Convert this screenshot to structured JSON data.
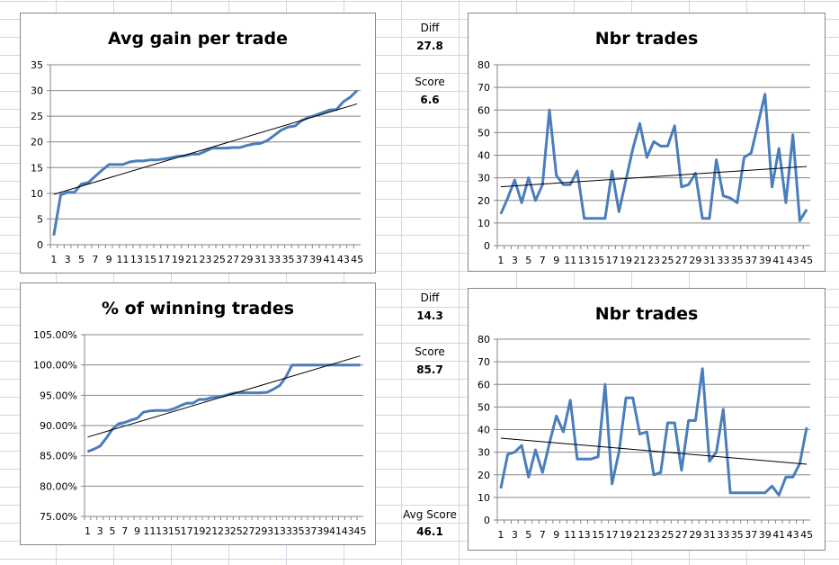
{
  "side_panel": {
    "top": {
      "diff_label": "Diff",
      "diff_value": "27.8",
      "score_label": "Score",
      "score_value": "6.6"
    },
    "bottom": {
      "diff_label": "Diff",
      "diff_value": "14.3",
      "score_label": "Score",
      "score_value": "85.7",
      "avg_label": "Avg Score",
      "avg_value": "46.1"
    }
  },
  "colors": {
    "series": "#4a7ebb",
    "trend": "#000000",
    "grid": "#868686"
  },
  "chart_data": [
    {
      "type": "line",
      "title": "Avg gain per trade",
      "xlabel": "",
      "ylabel": "",
      "ylim": [
        0,
        35
      ],
      "yticks": [
        "0",
        "5",
        "10",
        "15",
        "20",
        "25",
        "30",
        "35"
      ],
      "grid": true,
      "legend": "none",
      "x": [
        1,
        2,
        3,
        4,
        5,
        6,
        7,
        8,
        9,
        10,
        11,
        12,
        13,
        14,
        15,
        16,
        17,
        18,
        19,
        20,
        21,
        22,
        23,
        24,
        25,
        26,
        27,
        28,
        29,
        30,
        31,
        32,
        33,
        34,
        35,
        36,
        37,
        38,
        39,
        40,
        41,
        42,
        43,
        44,
        45
      ],
      "values": [
        1.8,
        9.7,
        10.2,
        10.2,
        11.8,
        12.1,
        13.3,
        14.5,
        15.6,
        15.6,
        15.6,
        16.1,
        16.3,
        16.3,
        16.5,
        16.5,
        16.7,
        16.9,
        17.2,
        17.3,
        17.6,
        17.6,
        18.2,
        18.8,
        18.8,
        18.8,
        18.9,
        18.9,
        19.3,
        19.6,
        19.7,
        20.3,
        21.3,
        22.3,
        22.9,
        23.1,
        24.2,
        24.8,
        25.2,
        25.7,
        26.2,
        26.3,
        27.8,
        28.7,
        30.0
      ],
      "trendline": [
        9.8,
        27.4
      ]
    },
    {
      "type": "line",
      "title": "% of winning trades",
      "xlabel": "",
      "ylabel": "",
      "ylim": [
        75,
        105
      ],
      "yticks": [
        "75.00%",
        "80.00%",
        "85.00%",
        "90.00%",
        "95.00%",
        "100.00%",
        "105.00%"
      ],
      "grid": true,
      "legend": "none",
      "x": [
        1,
        2,
        3,
        4,
        5,
        6,
        7,
        8,
        9,
        10,
        11,
        12,
        13,
        14,
        15,
        16,
        17,
        18,
        19,
        20,
        21,
        22,
        23,
        24,
        25,
        26,
        27,
        28,
        29,
        30,
        31,
        32,
        33,
        34,
        35,
        36,
        37,
        38,
        39,
        40,
        41,
        42,
        43,
        44,
        45
      ],
      "values": [
        85.7,
        86.1,
        86.6,
        87.9,
        89.4,
        90.3,
        90.5,
        90.9,
        91.2,
        92.2,
        92.4,
        92.5,
        92.5,
        92.5,
        92.8,
        93.3,
        93.7,
        93.7,
        94.3,
        94.3,
        94.6,
        94.7,
        94.9,
        95.2,
        95.4,
        95.4,
        95.4,
        95.4,
        95.4,
        95.5,
        96.0,
        96.6,
        98.0,
        100,
        100,
        100,
        100,
        100,
        100,
        100,
        100,
        100,
        100,
        100,
        100
      ],
      "trendline": [
        88.1,
        101.5
      ]
    },
    {
      "type": "line",
      "title": "Nbr trades",
      "xlabel": "",
      "ylabel": "",
      "ylim": [
        0,
        80
      ],
      "yticks": [
        "0",
        "10",
        "20",
        "30",
        "40",
        "50",
        "60",
        "70",
        "80"
      ],
      "grid": true,
      "legend": "none",
      "x": [
        1,
        2,
        3,
        4,
        5,
        6,
        7,
        8,
        9,
        10,
        11,
        12,
        13,
        14,
        15,
        16,
        17,
        18,
        19,
        20,
        21,
        22,
        23,
        24,
        25,
        26,
        27,
        28,
        29,
        30,
        31,
        32,
        33,
        34,
        35,
        36,
        37,
        38,
        39,
        40,
        41,
        42,
        43,
        44,
        45
      ],
      "values": [
        14,
        21,
        29,
        19,
        30,
        20,
        27,
        60,
        31,
        27,
        27,
        33,
        12,
        12,
        12,
        12,
        33,
        15,
        29,
        43,
        54,
        39,
        46,
        44,
        44,
        53,
        26,
        27,
        32,
        12,
        12,
        38,
        22,
        21,
        19,
        39,
        41,
        54,
        67,
        26,
        43,
        19,
        49,
        11,
        16
      ],
      "trendline": [
        26,
        35
      ]
    },
    {
      "type": "line",
      "title": "Nbr trades",
      "xlabel": "",
      "ylabel": "",
      "ylim": [
        0,
        80
      ],
      "yticks": [
        "0",
        "10",
        "20",
        "30",
        "40",
        "50",
        "60",
        "70",
        "80"
      ],
      "grid": true,
      "legend": "none",
      "x": [
        1,
        2,
        3,
        4,
        5,
        6,
        7,
        8,
        9,
        10,
        11,
        12,
        13,
        14,
        15,
        16,
        17,
        18,
        19,
        20,
        21,
        22,
        23,
        24,
        25,
        26,
        27,
        28,
        29,
        30,
        31,
        32,
        33,
        34,
        35,
        36,
        37,
        38,
        39,
        40,
        41,
        42,
        43,
        44,
        45
      ],
      "values": [
        14,
        29,
        30,
        33,
        19,
        31,
        21,
        34,
        46,
        39,
        53,
        27,
        27,
        27,
        28,
        60,
        16,
        30,
        54,
        54,
        38,
        39,
        20,
        21,
        43,
        43,
        22,
        44,
        44,
        67,
        26,
        30,
        49,
        12,
        12,
        12,
        12,
        12,
        12,
        15,
        11,
        19,
        19,
        25,
        41
      ],
      "trendline": [
        36.2,
        24.7
      ]
    }
  ]
}
